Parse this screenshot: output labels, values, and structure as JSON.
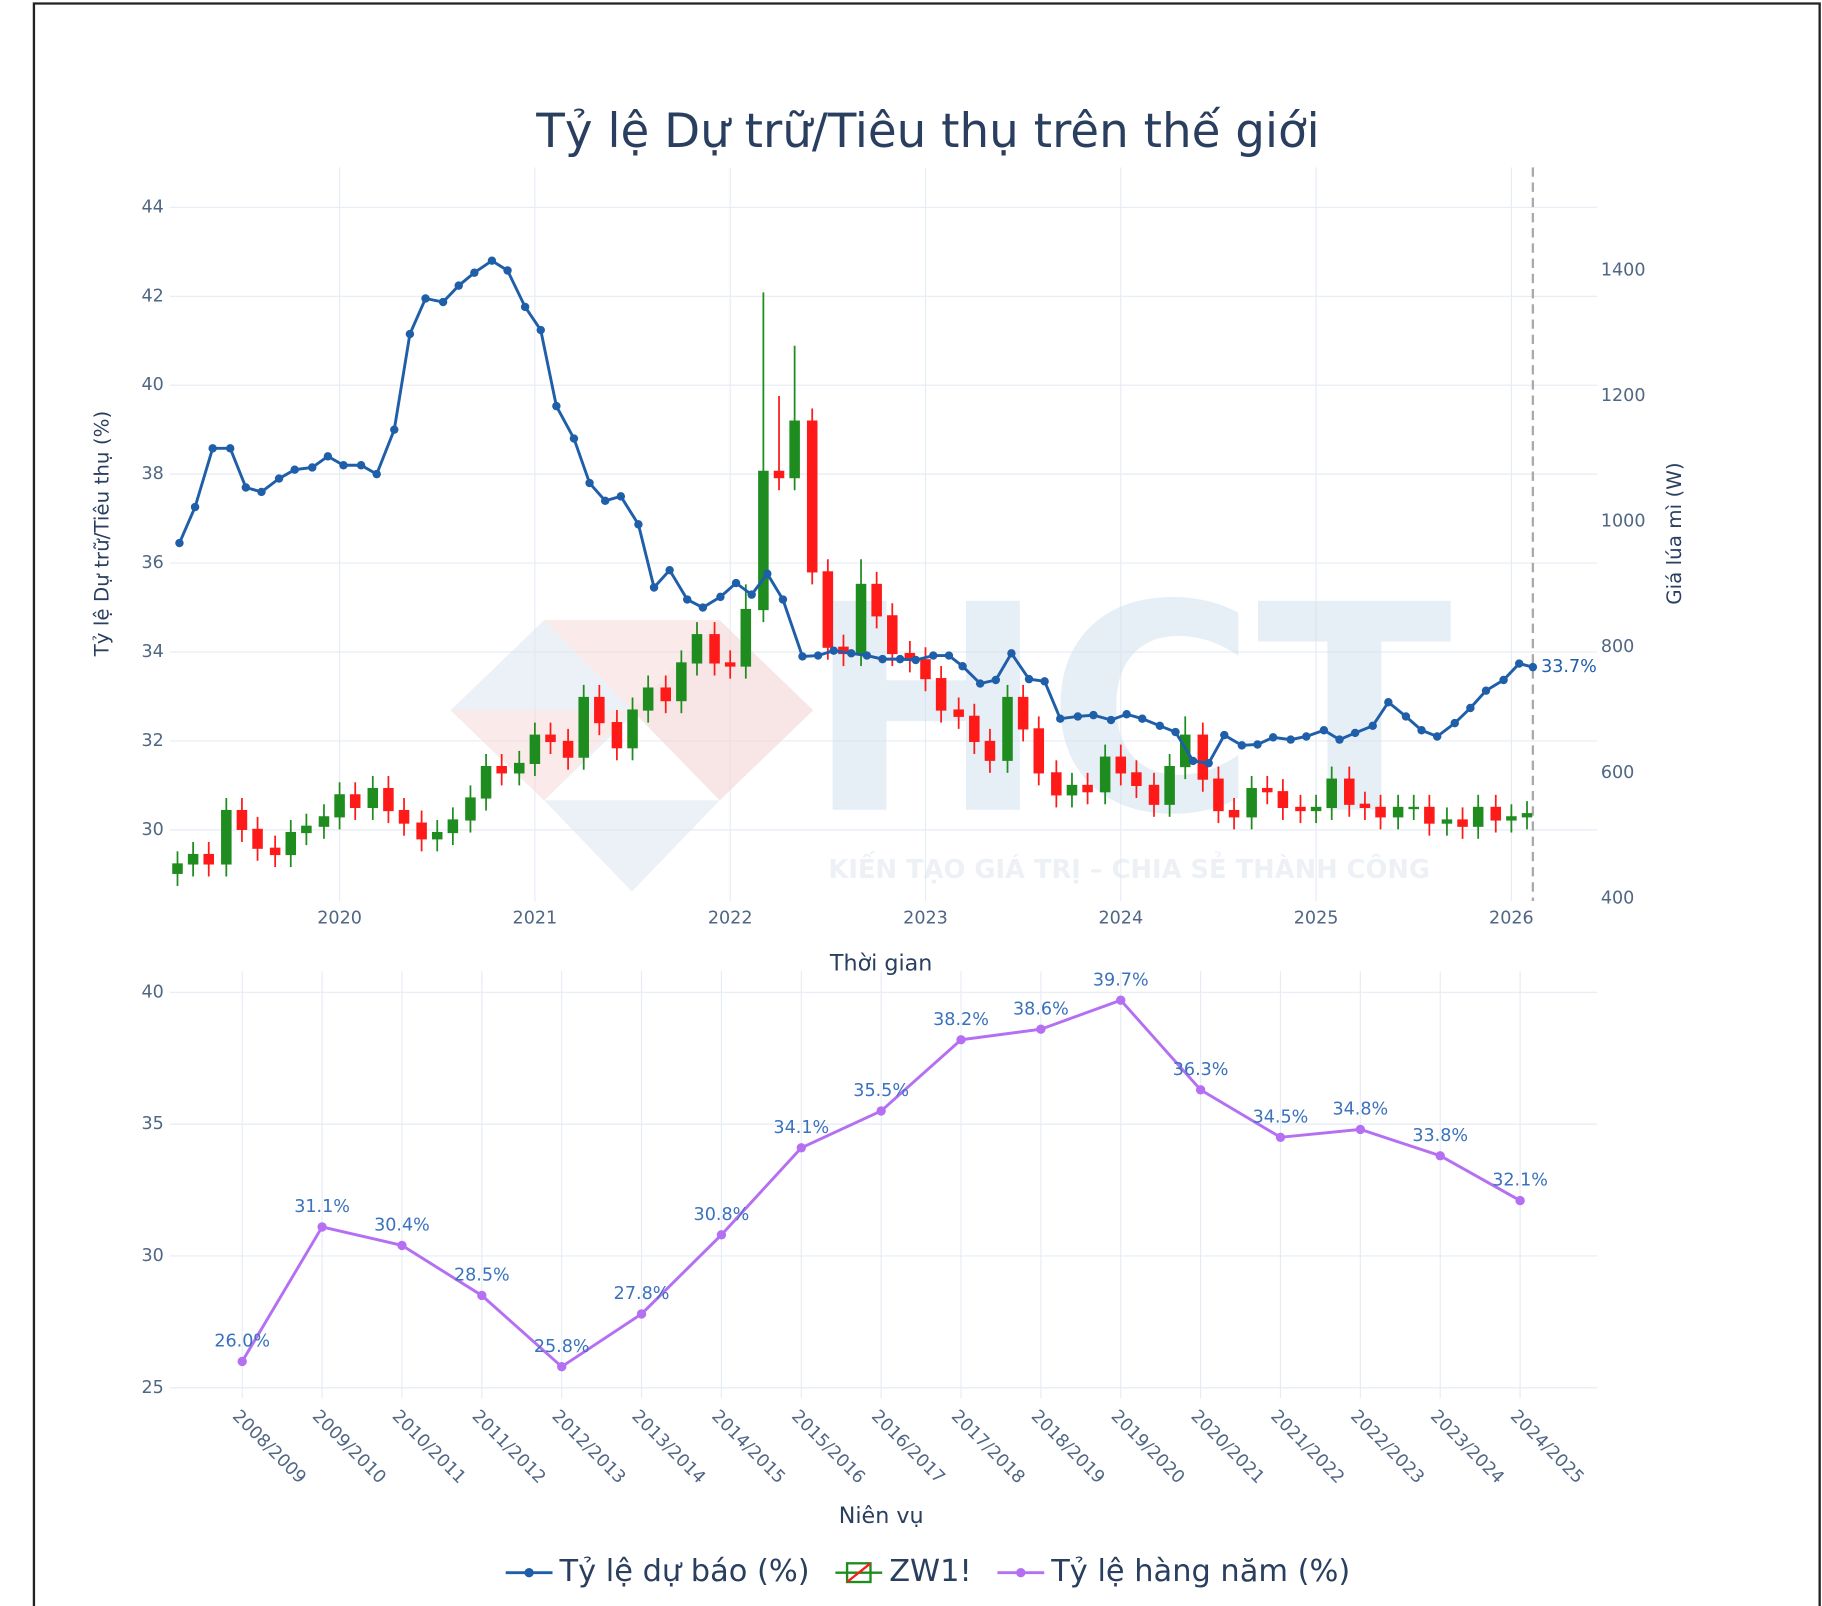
{
  "chart_data": [
    {
      "type": "line",
      "title": "Tỷ lệ Dự trữ/Tiêu thụ trên thế giới",
      "x_label": "Thời gian",
      "y_label": "Tỷ lệ Dự trữ/Tiêu thụ (%)",
      "y2_label": "Giá lúa mì (W)",
      "xlim": [
        2019.13,
        2026.44
      ],
      "xticks": [
        2020,
        2021,
        2022,
        2023,
        2024,
        2025,
        2026
      ],
      "ylim": [
        28.4,
        44.9
      ],
      "yticks": [
        30,
        32,
        34,
        36,
        38,
        40,
        42,
        44
      ],
      "y2lim": [
        396,
        1564
      ],
      "y2ticks": [
        400,
        600,
        800,
        1000,
        1200,
        1400
      ],
      "grid": true,
      "reference_line": 2026.11,
      "watermark": {
        "logo": "HCT",
        "slogan": "KIẾN TẠO GIÁ TRỊ – CHIA SẺ THÀNH CÔNG"
      },
      "series": [
        {
          "name": "Tỷ lệ dự báo (%)",
          "type": "line",
          "color": "#1f5ea8",
          "x": [
            2019.18,
            2019.26,
            2019.35,
            2019.44,
            2019.52,
            2019.6,
            2019.69,
            2019.77,
            2019.86,
            2019.94,
            2020.02,
            2020.11,
            2020.19,
            2020.28,
            2020.36,
            2020.44,
            2020.53,
            2020.61,
            2020.69,
            2020.78,
            2020.86,
            2020.95,
            2021.03,
            2021.11,
            2021.2,
            2021.28,
            2021.36,
            2021.44,
            2021.53,
            2021.61,
            2021.69,
            2021.78,
            2021.86,
            2021.95,
            2022.03,
            2022.11,
            2022.19,
            2022.27,
            2022.37,
            2022.45,
            2022.53,
            2022.62,
            2022.7,
            2022.78,
            2022.87,
            2022.95,
            2023.04,
            2023.12,
            2023.19,
            2023.28,
            2023.36,
            2023.44,
            2023.53,
            2023.61,
            2023.69,
            2023.78,
            2023.86,
            2023.95,
            2024.03,
            2024.11,
            2024.2,
            2024.28,
            2024.37,
            2024.45,
            2024.53,
            2024.62,
            2024.7,
            2024.78,
            2024.87,
            2024.95,
            2025.04,
            2025.12,
            2025.2,
            2025.29,
            2025.37,
            2025.46,
            2025.54,
            2025.62,
            2025.71,
            2025.79,
            2025.87,
            2025.96,
            2026.04,
            2026.11
          ],
          "values": [
            36.45,
            37.26,
            38.58,
            38.58,
            37.7,
            37.6,
            37.9,
            38.1,
            38.15,
            38.4,
            38.2,
            38.2,
            38.0,
            39.0,
            41.15,
            41.95,
            41.87,
            42.24,
            42.53,
            42.8,
            42.58,
            41.76,
            41.24,
            39.53,
            38.8,
            37.8,
            37.4,
            37.5,
            36.87,
            35.45,
            35.84,
            35.18,
            35.0,
            35.24,
            35.55,
            35.29,
            35.76,
            35.18,
            33.9,
            33.92,
            34.03,
            33.97,
            33.92,
            33.84,
            33.84,
            33.82,
            33.92,
            33.92,
            33.68,
            33.29,
            33.37,
            33.97,
            33.39,
            33.34,
            32.5,
            32.55,
            32.58,
            32.47,
            32.6,
            32.5,
            32.34,
            32.2,
            31.55,
            31.5,
            32.13,
            31.9,
            31.92,
            32.08,
            32.03,
            32.1,
            32.24,
            32.03,
            32.18,
            32.34,
            32.87,
            32.55,
            32.24,
            32.1,
            32.4,
            32.74,
            33.13,
            33.37,
            33.74,
            33.66
          ],
          "value_labels": [
            null,
            null,
            null,
            null,
            null,
            null,
            null,
            null,
            null,
            null,
            null,
            null,
            null,
            null,
            null,
            null,
            null,
            null,
            null,
            null,
            null,
            null,
            null,
            null,
            null,
            null,
            null,
            null,
            null,
            null,
            null,
            null,
            null,
            null,
            null,
            null,
            null,
            null,
            null,
            null,
            null,
            null,
            null,
            null,
            null,
            null,
            null,
            null,
            null,
            null,
            null,
            null,
            null,
            null,
            null,
            null,
            null,
            null,
            null,
            null,
            null,
            null,
            null,
            null,
            null,
            null,
            null,
            null,
            null,
            null,
            null,
            null,
            null,
            null,
            null,
            null,
            null,
            null,
            null,
            null,
            null,
            null,
            null,
            "33.7%"
          ]
        },
        {
          "name": "ZW1!",
          "type": "candlestick",
          "axis": "y2",
          "increasing_color": "#1e8c1e",
          "decreasing_color": "#ff1a1a",
          "x": [
            2019.17,
            2019.25,
            2019.33,
            2019.42,
            2019.5,
            2019.58,
            2019.67,
            2019.75,
            2019.83,
            2019.92,
            2020,
            2020.08,
            2020.17,
            2020.25,
            2020.33,
            2020.42,
            2020.5,
            2020.58,
            2020.67,
            2020.75,
            2020.83,
            2020.92,
            2021,
            2021.08,
            2021.17,
            2021.25,
            2021.33,
            2021.42,
            2021.5,
            2021.58,
            2021.67,
            2021.75,
            2021.83,
            2021.92,
            2022,
            2022.08,
            2022.17,
            2022.25,
            2022.33,
            2022.42,
            2022.5,
            2022.58,
            2022.67,
            2022.75,
            2022.83,
            2022.92,
            2023,
            2023.08,
            2023.17,
            2023.25,
            2023.33,
            2023.42,
            2023.5,
            2023.58,
            2023.67,
            2023.75,
            2023.83,
            2023.92,
            2024,
            2024.08,
            2024.17,
            2024.25,
            2024.33,
            2024.42,
            2024.5,
            2024.58,
            2024.67,
            2024.75,
            2024.83,
            2024.92,
            2025,
            2025.08,
            2025.17,
            2025.25,
            2025.33,
            2025.42,
            2025.5,
            2025.58,
            2025.67,
            2025.75,
            2025.83,
            2025.92,
            2026,
            2026.08
          ],
          "open": [
            440,
            455,
            470,
            455,
            540,
            510,
            480,
            470,
            505,
            515,
            530,
            565,
            545,
            575,
            540,
            520,
            495,
            505,
            525,
            560,
            610,
            600,
            615,
            660,
            650,
            625,
            720,
            680,
            640,
            700,
            735,
            715,
            775,
            820,
            775,
            770,
            860,
            1080,
            1070,
            1160,
            920,
            800,
            790,
            900,
            850,
            790,
            780,
            750,
            700,
            690,
            650,
            620,
            720,
            670,
            600,
            565,
            580,
            570,
            625,
            600,
            580,
            550,
            610,
            660,
            590,
            540,
            530,
            575,
            570,
            545,
            540,
            545,
            590,
            550,
            545,
            530,
            545,
            545,
            520,
            525,
            515,
            545,
            525,
            530
          ],
          "high": [
            475,
            490,
            490,
            560,
            560,
            530,
            500,
            525,
            535,
            550,
            585,
            585,
            595,
            595,
            560,
            540,
            525,
            545,
            580,
            630,
            630,
            635,
            680,
            680,
            670,
            740,
            740,
            700,
            720,
            755,
            755,
            795,
            840,
            840,
            795,
            900,
            1365,
            1200,
            1280,
            1180,
            940,
            820,
            940,
            920,
            870,
            810,
            800,
            770,
            720,
            710,
            670,
            740,
            740,
            690,
            620,
            600,
            600,
            645,
            645,
            620,
            600,
            630,
            690,
            680,
            610,
            560,
            595,
            595,
            590,
            565,
            565,
            610,
            610,
            570,
            565,
            565,
            565,
            565,
            545,
            545,
            565,
            565,
            550,
            555
          ],
          "low": [
            420,
            435,
            435,
            435,
            490,
            460,
            450,
            450,
            485,
            495,
            510,
            525,
            525,
            520,
            500,
            475,
            475,
            485,
            505,
            540,
            580,
            580,
            595,
            630,
            605,
            605,
            660,
            620,
            620,
            680,
            695,
            695,
            755,
            755,
            750,
            750,
            840,
            1050,
            1050,
            900,
            780,
            770,
            770,
            830,
            770,
            760,
            730,
            680,
            670,
            630,
            600,
            600,
            650,
            580,
            545,
            545,
            550,
            550,
            580,
            560,
            530,
            530,
            590,
            570,
            520,
            510,
            510,
            550,
            525,
            520,
            520,
            525,
            530,
            525,
            510,
            510,
            525,
            500,
            500,
            495,
            495,
            505,
            505,
            510
          ],
          "close": [
            455,
            470,
            455,
            540,
            510,
            480,
            470,
            505,
            515,
            530,
            565,
            545,
            575,
            540,
            520,
            495,
            505,
            525,
            560,
            610,
            600,
            615,
            660,
            650,
            625,
            720,
            680,
            640,
            700,
            735,
            715,
            775,
            820,
            775,
            770,
            860,
            1080,
            1070,
            1160,
            920,
            800,
            790,
            900,
            850,
            790,
            780,
            750,
            700,
            690,
            650,
            620,
            720,
            670,
            600,
            565,
            580,
            570,
            625,
            600,
            580,
            550,
            610,
            660,
            590,
            540,
            530,
            575,
            570,
            545,
            540,
            545,
            590,
            550,
            545,
            530,
            545,
            545,
            520,
            525,
            515,
            545,
            525,
            530,
            535
          ]
        }
      ]
    },
    {
      "type": "line",
      "x_label": "Niên vụ",
      "ylim": [
        24.6,
        40.8
      ],
      "yticks": [
        25,
        30,
        35,
        40
      ],
      "grid": true,
      "categories": [
        "2008/2009",
        "2009/2010",
        "2010/2011",
        "2011/2012",
        "2012/2013",
        "2013/2014",
        "2014/2015",
        "2015/2016",
        "2016/2017",
        "2017/2018",
        "2018/2019",
        "2019/2020",
        "2020/2021",
        "2021/2022",
        "2022/2023",
        "2023/2024",
        "2024/2025"
      ],
      "series": [
        {
          "name": "Tỷ lệ hàng năm (%)",
          "color": "#b46ff2",
          "values": [
            26.0,
            31.1,
            30.4,
            28.5,
            25.8,
            27.8,
            30.8,
            34.1,
            35.5,
            38.2,
            38.6,
            39.7,
            36.3,
            34.5,
            34.8,
            33.8,
            32.1
          ],
          "value_labels": [
            "26.0%",
            "31.1%",
            "30.4%",
            "28.5%",
            "25.8%",
            "27.8%",
            "30.8%",
            "34.1%",
            "35.5%",
            "38.2%",
            "38.6%",
            "39.7%",
            "36.3%",
            "34.5%",
            "34.8%",
            "33.8%",
            "32.1%"
          ]
        }
      ]
    }
  ]
}
